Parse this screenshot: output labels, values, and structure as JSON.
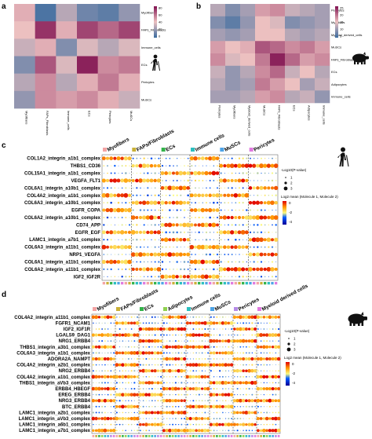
{
  "panels": {
    "a": {
      "label": "a",
      "species_icon": "human-icon",
      "rows": [
        "Myofibers",
        "FAPs_Fibroblasts",
        "Immune_cells",
        "ECs",
        "Pericytes",
        "MuSCs"
      ],
      "cols": [
        "Myofibers",
        "FAPs_Fibroblasts",
        "Immune_cells",
        "ECs",
        "Pericytes",
        "MuSCs"
      ],
      "colorbar_ticks": [
        "80",
        "60",
        "40",
        "20",
        "0"
      ],
      "matrix": [
        [
          0.55,
          0.05,
          0.35,
          0.15,
          0.1,
          0.25
        ],
        [
          0.5,
          0.9,
          0.55,
          0.85,
          0.75,
          0.85
        ],
        [
          0.4,
          0.55,
          0.2,
          0.45,
          0.35,
          0.45
        ],
        [
          0.2,
          0.8,
          0.45,
          0.95,
          0.65,
          0.7
        ],
        [
          0.35,
          0.65,
          0.35,
          0.55,
          0.7,
          0.55
        ],
        [
          0.25,
          0.65,
          0.6,
          0.65,
          0.55,
          0.4
        ]
      ]
    },
    "b": {
      "label": "b",
      "species_icon": "pig-icon",
      "rows": [
        "Pericytes",
        "Myofibers",
        "Myeloid_derived_cells",
        "MuSCs",
        "FAPs_Fibroblasts",
        "ECs",
        "Adipocytes",
        "Immune_cells"
      ],
      "cols": [
        "Pericytes",
        "Myofibers",
        "Myeloid_derived_cells",
        "MuSCs",
        "FAPs_Fibroblasts",
        "ECs",
        "Adipocytes",
        "Immune_cells"
      ],
      "colorbar_ticks": [
        "25",
        "20",
        "15",
        "10",
        "5"
      ],
      "matrix": [
        [
          0.35,
          0.2,
          0.3,
          0.6,
          0.65,
          0.4,
          0.35,
          0.3
        ],
        [
          0.2,
          0.1,
          0.25,
          0.5,
          0.45,
          0.2,
          0.25,
          0.3
        ],
        [
          0.3,
          0.25,
          0.3,
          0.5,
          0.5,
          0.35,
          0.3,
          0.35
        ],
        [
          0.6,
          0.5,
          0.55,
          0.8,
          0.75,
          0.65,
          0.7,
          0.6
        ],
        [
          0.65,
          0.45,
          0.5,
          0.7,
          0.95,
          0.75,
          0.6,
          0.65
        ],
        [
          0.4,
          0.25,
          0.35,
          0.65,
          0.75,
          0.4,
          0.5,
          0.35
        ],
        [
          0.35,
          0.25,
          0.3,
          0.7,
          0.6,
          0.5,
          0.3,
          0.4
        ],
        [
          0.3,
          0.3,
          0.35,
          0.6,
          0.65,
          0.35,
          0.4,
          0.25
        ]
      ]
    },
    "c": {
      "label": "c",
      "species_icon": "human-icon",
      "groups": [
        "Myofibers",
        "FAPs/Fibroblasts",
        "ECs",
        "Immune cells",
        "MuSCs",
        "Pericytes"
      ],
      "group_colors": [
        "#f4a3a3",
        "#c9b037",
        "#33b34a",
        "#2bbfbf",
        "#4da3e6",
        "#e07ae0"
      ],
      "interactions": [
        "COL1A2_integrin_a1b1_complex",
        "THBS1_CD36",
        "COL15A1_integrin_a1b1_complex",
        "VEGFA_FLT1",
        "COL6A1_integrin_a10b1_complex",
        "COL4A2_integrin_a1b1_complex",
        "COL6A3_integrin_a10b1_complex",
        "EGFR_COPA",
        "COL6A2_integrin_a10b1_complex",
        "CD74_APP",
        "EGFR_EGF",
        "LAMC1_integrin_a7b1_complex",
        "COL6A3_integrin_a11b1_complex",
        "NRP1_VEGFA",
        "COL6A1_integrin_a11b1_complex",
        "COL6A2_integrin_a11b1_complex",
        "IGF2_IGF2R"
      ],
      "ncols": 48,
      "seed": 7,
      "legend_pvalue_title": "-Log10(P-value)",
      "legend_pvalue_ticks": [
        "1",
        "2",
        "3"
      ],
      "legend_mean_title": "Log2 mean (Molecule 1, Molecule 2)",
      "legend_mean_ticks": [
        "0",
        "-2",
        "-4"
      ]
    },
    "d": {
      "label": "d",
      "species_icon": "pig-icon",
      "groups": [
        "Myofibers",
        "FAPs/Fibroblasts",
        "ECs",
        "Adipocytes",
        "Immune cells",
        "MuSCs",
        "Pericytes",
        "Myeloid derived cells"
      ],
      "group_colors": [
        "#f4a3a3",
        "#c9b037",
        "#33b34a",
        "#8fd14f",
        "#2bbfbf",
        "#4da3e6",
        "#b58be6",
        "#e07ae0"
      ],
      "interactions": [
        "COL4A2_integrin_a11b1_complex",
        "FGFR1_NCAM1",
        "IGF2_IGF1R",
        "LGALS9_DAG1",
        "NRG1_ERBB4",
        "THBS1_integrin_a3b1_complex",
        "COL6A3_integrin_a1b1_complex",
        "ADORA2A_NAMPT",
        "COL4A2_integrin_a2b1_complex",
        "NRG2_ERBB4",
        "COL4A2_integrin_a1b1_complex",
        "THBS1_integrin_aVb3_complex",
        "ERBB4_HBEGF",
        "EREG_ERBB4",
        "NRG3_ERBB4",
        "BTC_ERBB4",
        "LAMC1_integrin_a2b1_complex",
        "LAMC1_integrin_aVb3_complex",
        "LAMC1_integrin_a6b1_complex",
        "LAMC1_integrin_a7b1_complex"
      ],
      "ncols": 64,
      "seed": 13,
      "legend_pvalue_title": "-Log10(P-value)",
      "legend_pvalue_ticks": [
        "1",
        "2",
        "3"
      ],
      "legend_mean_title": "Log2 mean (Molecule 1, Molecule 2)",
      "legend_mean_ticks": [
        "0",
        "-2",
        "-4"
      ]
    }
  }
}
